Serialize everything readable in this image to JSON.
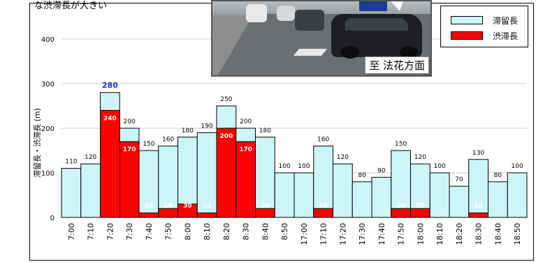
{
  "caption": "な渋滞長が大きい",
  "photo": {
    "caption": "至 法花方面"
  },
  "legend": {
    "items": [
      {
        "label": "滞留長",
        "color": "#ccf5f7"
      },
      {
        "label": "渋滞長",
        "color": "#ff0000"
      }
    ]
  },
  "colors": {
    "queue": "#ccf5f7",
    "jam": "#ff0000",
    "peak_label": "#1a2fd6"
  },
  "chart_data": {
    "type": "bar",
    "ylabel": "滞留長・渋滞長 (m)",
    "xlabel": "",
    "ylim": [
      0,
      400
    ],
    "yticks": [
      0,
      100,
      200,
      300,
      400
    ],
    "grid": true,
    "legend_position": "top-right",
    "categories": [
      "7:00",
      "7:10",
      "7:20",
      "7:30",
      "7:40",
      "7:50",
      "8:00",
      "8:10",
      "8:20",
      "8:30",
      "8:40",
      "8:50",
      "17:00",
      "17:10",
      "17:20",
      "17:30",
      "17:40",
      "17:50",
      "18:00",
      "18:10",
      "18:20",
      "18:30",
      "18:40",
      "18:50"
    ],
    "series": [
      {
        "name": "滞留長",
        "values": [
          110,
          120,
          280,
          200,
          150,
          160,
          180,
          190,
          250,
          200,
          180,
          100,
          100,
          160,
          120,
          80,
          90,
          150,
          120,
          100,
          70,
          130,
          80,
          100
        ]
      },
      {
        "name": "渋滞長",
        "values": [
          0,
          0,
          240,
          170,
          10,
          20,
          30,
          10,
          200,
          170,
          20,
          0,
          0,
          20,
          0,
          0,
          0,
          20,
          20,
          0,
          0,
          10,
          0,
          0
        ]
      }
    ],
    "peak_label": "280"
  }
}
